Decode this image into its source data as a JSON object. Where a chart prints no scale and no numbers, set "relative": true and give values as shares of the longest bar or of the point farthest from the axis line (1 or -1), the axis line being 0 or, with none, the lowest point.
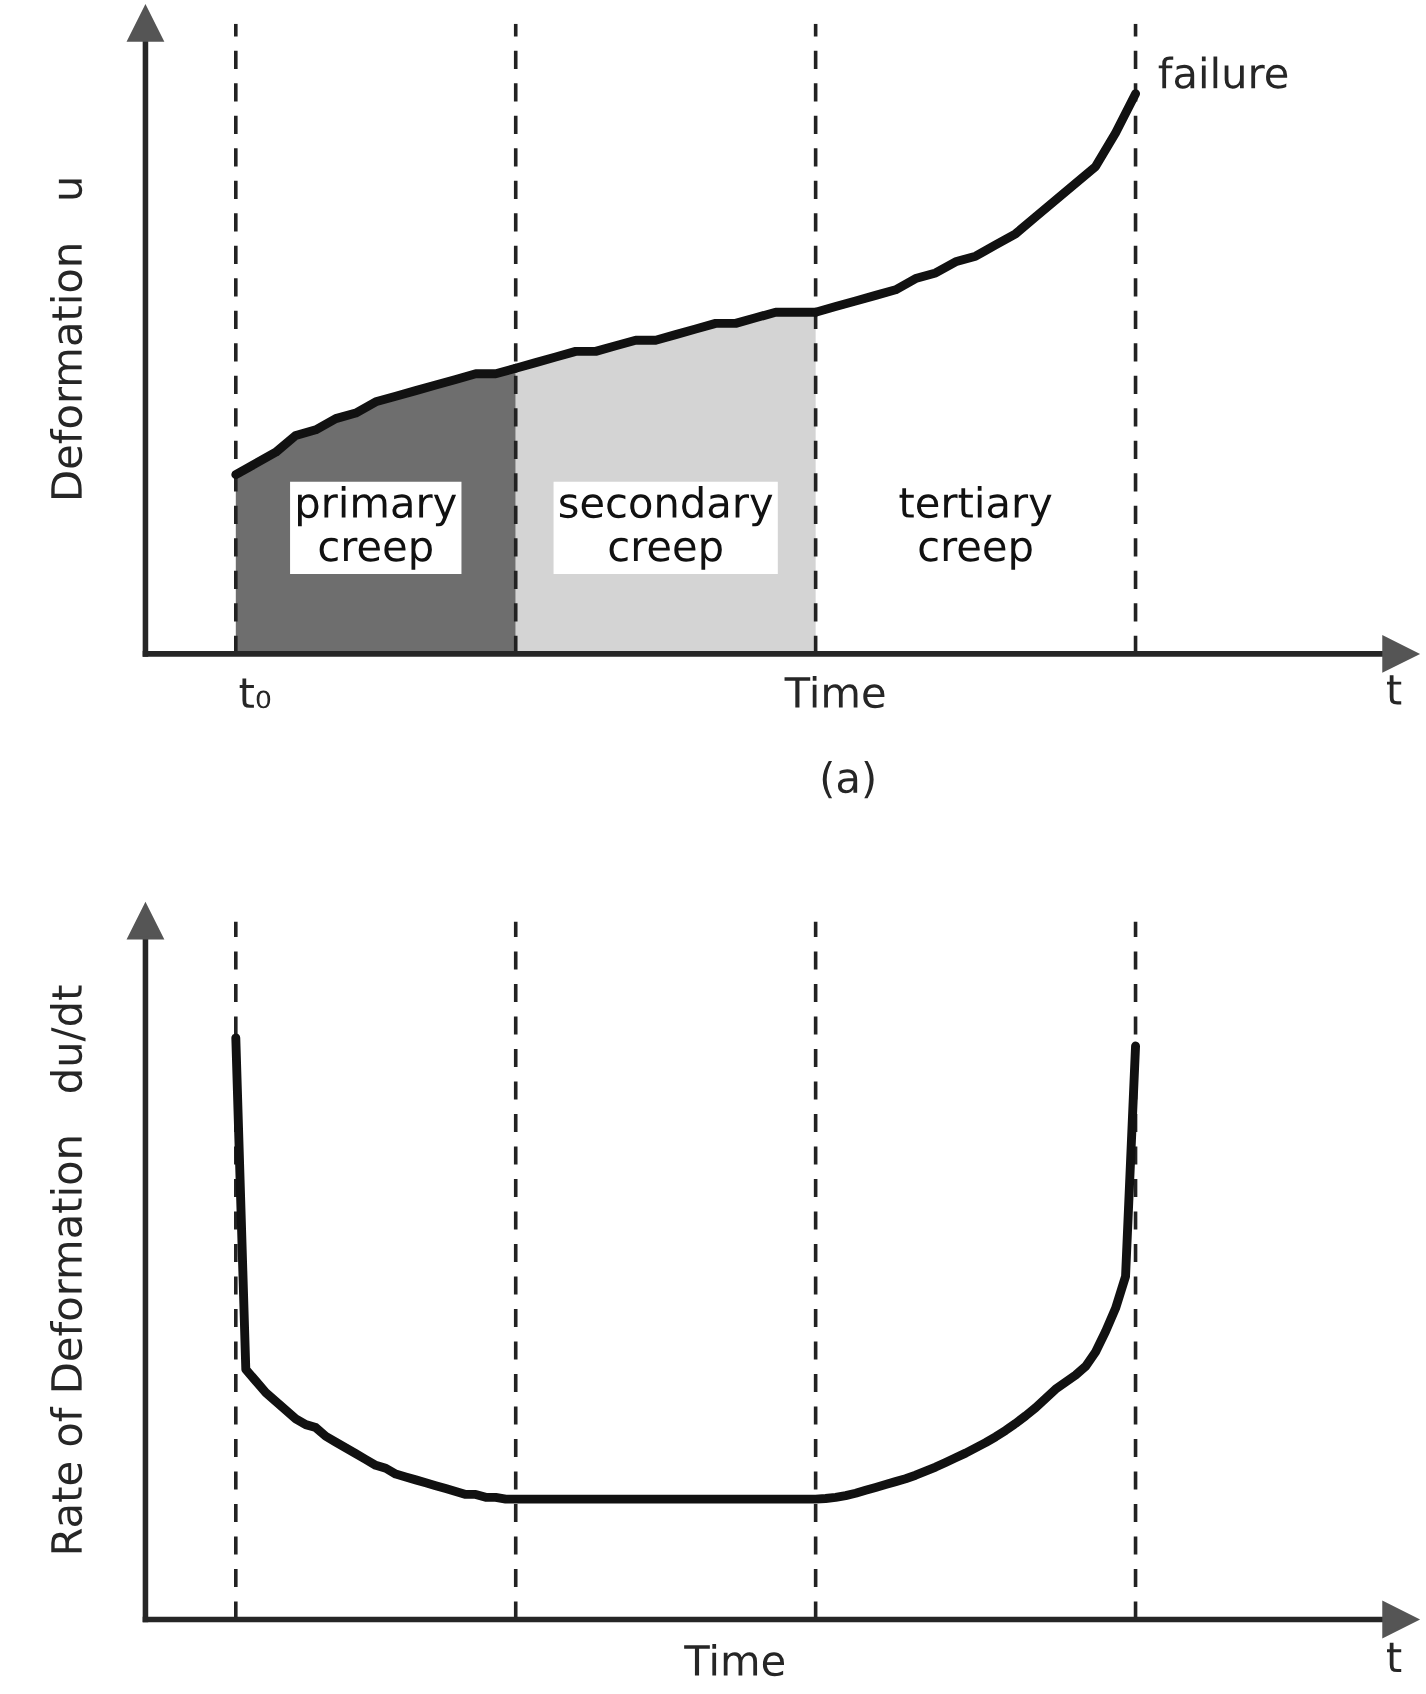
{
  "chart_data": [
    {
      "type": "line",
      "relative": true,
      "ylabel": "Deformation   u",
      "xlabel": "Time",
      "grid": "x",
      "marker": "none",
      "line_style": "solid",
      "categories": [
        null,
        null,
        null,
        null,
        null,
        null,
        null,
        null,
        null,
        null,
        null,
        null,
        null,
        null,
        null,
        null,
        null,
        null,
        null,
        null,
        null,
        null,
        null,
        null,
        null,
        null,
        null,
        null,
        null,
        null,
        null,
        null,
        null,
        null,
        null,
        null,
        null,
        null,
        null,
        null,
        null,
        null,
        null,
        null,
        null,
        null
      ],
      "series": [
        {
          "name": "primary\ncreep",
          "type": "area",
          "color": "#6e6e6e",
          "values": [
            0.32,
            0.34,
            0.36,
            0.39,
            0.4,
            0.42,
            0.43,
            0.45,
            0.46,
            0.47,
            0.48,
            0.49,
            0.5,
            0.5,
            0.51,
            null,
            null,
            null,
            null,
            null,
            null,
            null,
            null,
            null,
            null,
            null,
            null,
            null,
            null,
            null,
            null,
            null,
            null,
            null,
            null,
            null,
            null,
            null,
            null,
            null,
            null,
            null,
            null,
            null,
            null,
            null
          ]
        },
        {
          "name": "secondary\ncreep",
          "type": "area",
          "color": "#d4d4d4",
          "values": [
            null,
            null,
            null,
            null,
            null,
            null,
            null,
            null,
            null,
            null,
            null,
            null,
            null,
            null,
            0.51,
            0.52,
            0.53,
            0.54,
            0.54,
            0.55,
            0.56,
            0.56,
            0.57,
            0.58,
            0.59,
            0.59,
            0.6,
            0.61,
            0.61,
            0.61,
            null,
            null,
            null,
            null,
            null,
            null,
            null,
            null,
            null,
            null,
            null,
            null,
            null,
            null,
            null,
            null
          ]
        },
        {
          "type": "line",
          "color": "#111111",
          "values": [
            null,
            null,
            null,
            null,
            null,
            null,
            null,
            null,
            null,
            null,
            null,
            null,
            null,
            null,
            null,
            null,
            null,
            null,
            null,
            null,
            null,
            null,
            null,
            null,
            null,
            null,
            null,
            null,
            null,
            0.61,
            0.62,
            0.63,
            0.64,
            0.65,
            0.67,
            0.68,
            0.7,
            0.71,
            0.73,
            0.75,
            0.78,
            0.81,
            0.84,
            0.87,
            0.93,
            1.0
          ]
        }
      ],
      "annotations": [
        "failure",
        "t₀",
        "t",
        "(a)",
        "tertiary\ncreep"
      ]
    },
    {
      "type": "line",
      "relative": true,
      "ylabel": "Rate of Deformation   du/dt",
      "xlabel": "Time",
      "grid": "x",
      "marker": "none",
      "line_style": "solid",
      "categories": [
        null,
        null,
        null,
        null,
        null,
        null,
        null,
        null,
        null,
        null,
        null,
        null,
        null,
        null,
        null,
        null,
        null,
        null,
        null,
        null,
        null,
        null,
        null,
        null,
        null,
        null,
        null,
        null,
        null,
        null,
        null,
        null,
        null,
        null,
        null,
        null,
        null,
        null,
        null,
        null,
        null,
        null,
        null,
        null,
        null,
        null,
        null,
        null,
        null,
        null,
        null,
        null,
        null,
        null,
        null,
        null,
        null,
        null,
        null,
        null,
        null,
        null,
        null,
        null,
        null,
        null,
        null,
        null,
        null,
        null,
        null,
        null,
        null,
        null,
        null,
        null,
        null,
        null,
        null,
        null,
        null,
        null,
        null,
        null,
        null,
        null,
        null,
        null,
        null,
        null,
        null
      ],
      "series": [
        {
          "color": "#111111",
          "values": [
            1.0,
            0.43,
            0.41,
            0.39,
            0.375,
            0.36,
            0.345,
            0.335,
            0.33,
            0.315,
            0.305,
            0.295,
            0.285,
            0.275,
            0.265,
            0.26,
            0.25,
            0.245,
            0.24,
            0.235,
            0.23,
            0.225,
            0.22,
            0.215,
            0.215,
            0.21,
            0.21,
            0.207,
            0.207,
            0.207,
            0.207,
            0.207,
            0.207,
            0.207,
            0.207,
            0.207,
            0.207,
            0.207,
            0.207,
            0.207,
            0.207,
            0.207,
            0.207,
            0.207,
            0.207,
            0.207,
            0.207,
            0.207,
            0.207,
            0.207,
            0.207,
            0.207,
            0.207,
            0.207,
            0.207,
            0.207,
            0.207,
            0.207,
            0.207,
            0.208,
            0.21,
            0.213,
            0.217,
            0.222,
            0.227,
            0.232,
            0.237,
            0.242,
            0.248,
            0.255,
            0.262,
            0.27,
            0.278,
            0.286,
            0.295,
            0.304,
            0.314,
            0.325,
            0.337,
            0.35,
            0.364,
            0.38,
            0.396,
            0.408,
            0.42,
            0.435,
            0.46,
            0.495,
            0.535,
            0.59,
            0.986
          ]
        }
      ],
      "annotations": [
        "t"
      ]
    }
  ]
}
